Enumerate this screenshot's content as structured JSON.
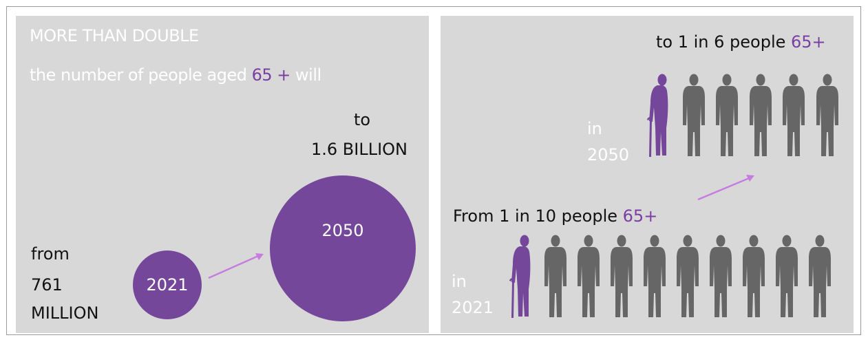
{
  "left": {
    "heading": "MORE THAN DOUBLE",
    "subtitle_pre": "the number of people aged ",
    "subtitle_accent": "65 +",
    "subtitle_post": " will",
    "to_word": "to",
    "to_value": "1.6 BILLION",
    "from_word": "from",
    "from_number": "761",
    "from_unit": "MILLION",
    "circle_small_label": "2021",
    "circle_large_label": "2050"
  },
  "right": {
    "top_caption_pre": "to 1 in 6 people ",
    "top_caption_accent": "65+",
    "bottom_caption_pre": "From 1 in 10 people ",
    "bottom_caption_accent": "65+",
    "in_word": "in",
    "year_top": "2050",
    "year_bottom": "2021",
    "row_2050": {
      "total": 6,
      "highlighted": 1
    },
    "row_2021": {
      "total": 10,
      "highlighted": 1
    }
  },
  "colors": {
    "panel_bg": "#d9d8d9",
    "accent_purple": "#75479b",
    "accent_text": "#7a3fa0",
    "arrow_pink": "#c77ddf",
    "person_gray": "#666666",
    "text_white": "#ffffff",
    "text_black": "#111111"
  },
  "icons": {
    "elderly_person": "elderly-person-with-cane-icon",
    "person": "standing-person-icon",
    "arrow": "arrow-right-icon"
  }
}
